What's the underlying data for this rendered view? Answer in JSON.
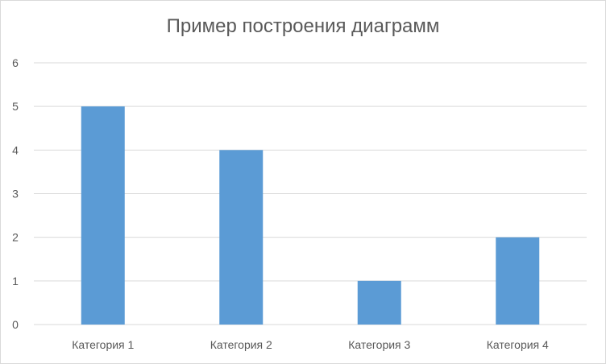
{
  "chart_data": {
    "type": "bar",
    "title": "Пример построения диаграмм",
    "categories": [
      "Категория 1",
      "Категория 2",
      "Категория 3",
      "Категория 4"
    ],
    "values": [
      5,
      4,
      1,
      2
    ],
    "ylim": [
      0,
      6
    ],
    "yticks": [
      0,
      1,
      2,
      3,
      4,
      5,
      6
    ],
    "grid": true,
    "legend": "none",
    "bar_color": "#5b9bd5",
    "grid_color": "#d9d9d9",
    "text_color": "#595959"
  }
}
